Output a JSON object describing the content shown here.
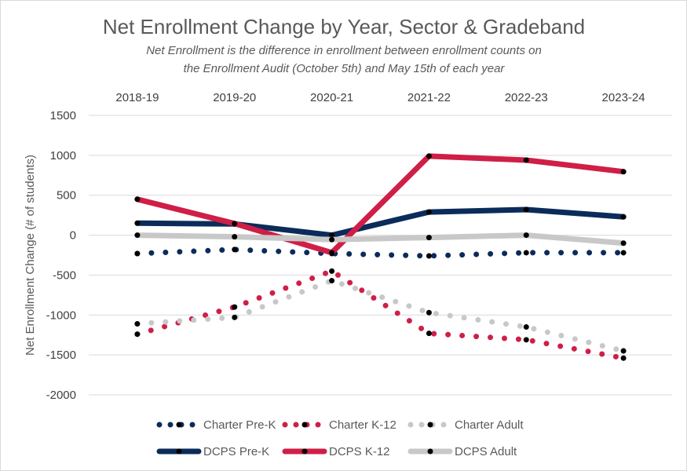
{
  "chart_data": {
    "type": "line",
    "title": "Net Enrollment Change by Year, Sector & Gradeband",
    "subtitle_lines": [
      "Net Enrollment is the difference in enrollment between enrollment counts on",
      "the Enrollment Audit (October 5th) and May 15th of each year"
    ],
    "ylabel": "Net Enrollment Change (# of students)",
    "xlabel": "",
    "categories": [
      "2018-19",
      "2019-20",
      "2020-21",
      "2021-22",
      "2022-23",
      "2023-24"
    ],
    "ylim": [
      -2000,
      1500
    ],
    "yticks": [
      1500,
      1000,
      500,
      0,
      -500,
      -1000,
      -1500,
      -2000
    ],
    "grid": true,
    "x_axis_position": "top",
    "legend_position": "bottom",
    "series": [
      {
        "name": "Charter Pre-K",
        "style": "dotted",
        "color": "#0b2c5a",
        "values": [
          -230,
          -180,
          -230,
          -260,
          -220,
          -220
        ]
      },
      {
        "name": "Charter K-12",
        "style": "dotted",
        "color": "#cf1f47",
        "values": [
          -1240,
          -900,
          -450,
          -1230,
          -1310,
          -1540
        ]
      },
      {
        "name": "Charter Adult",
        "style": "dotted",
        "color": "#c8c8c8",
        "values": [
          -1110,
          -1030,
          -570,
          -970,
          -1150,
          -1450
        ]
      },
      {
        "name": "DCPS Pre-K",
        "style": "solid",
        "color": "#0b2c5a",
        "values": [
          150,
          140,
          0,
          290,
          320,
          230
        ]
      },
      {
        "name": "DCPS K-12",
        "style": "solid",
        "color": "#cf1f47",
        "values": [
          450,
          145,
          -220,
          990,
          940,
          795
        ]
      },
      {
        "name": "DCPS Adult",
        "style": "solid",
        "color": "#c8c8c8",
        "values": [
          0,
          -20,
          -55,
          -30,
          0,
          -100
        ]
      }
    ]
  }
}
